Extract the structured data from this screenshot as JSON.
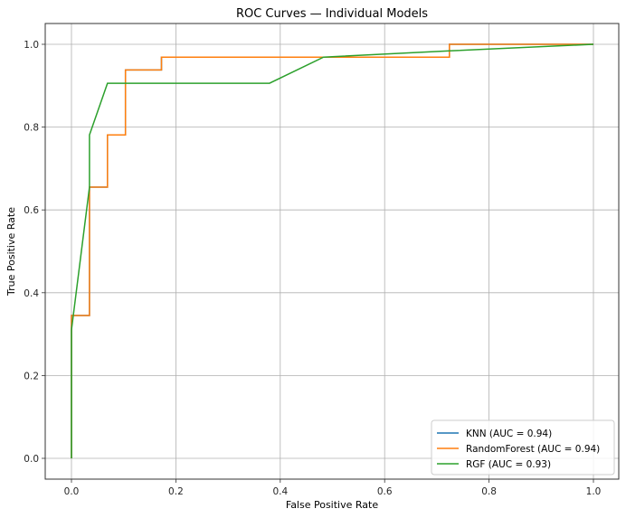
{
  "chart_data": {
    "type": "line",
    "title": "ROC Curves — Individual Models",
    "xlabel": "False Positive Rate",
    "ylabel": "True Positive Rate",
    "xlim": [
      -0.05,
      1.05
    ],
    "ylim": [
      -0.05,
      1.05
    ],
    "xticks": [
      0.0,
      0.2,
      0.4,
      0.6,
      0.8,
      1.0
    ],
    "yticks": [
      0.0,
      0.2,
      0.4,
      0.6,
      0.8,
      1.0
    ],
    "xtick_labels": [
      "0.0",
      "0.2",
      "0.4",
      "0.6",
      "0.8",
      "1.0"
    ],
    "ytick_labels": [
      "0.0",
      "0.2",
      "0.4",
      "0.6",
      "0.8",
      "1.0"
    ],
    "grid": true,
    "legend_position": "lower right",
    "series": [
      {
        "name": "KNN (AUC = 0.94)",
        "color": "#1f77b4",
        "x": [
          0.0,
          0.0,
          0.0345,
          0.0345,
          0.069,
          0.069,
          0.1034,
          0.1034,
          0.1724,
          0.1724,
          0.7241,
          0.7241,
          1.0
        ],
        "y": [
          0.0,
          0.345,
          0.345,
          0.655,
          0.655,
          0.781,
          0.781,
          0.938,
          0.938,
          0.969,
          0.969,
          1.0,
          1.0
        ]
      },
      {
        "name": "RandomForest (AUC = 0.94)",
        "color": "#ff7f0e",
        "x": [
          0.0,
          0.0,
          0.0345,
          0.0345,
          0.069,
          0.069,
          0.1034,
          0.1034,
          0.1724,
          0.1724,
          0.7241,
          0.7241,
          1.0
        ],
        "y": [
          0.0,
          0.345,
          0.345,
          0.655,
          0.655,
          0.781,
          0.781,
          0.938,
          0.938,
          0.969,
          0.969,
          1.0,
          1.0
        ]
      },
      {
        "name": "RGF (AUC = 0.93)",
        "color": "#2ca02c",
        "x": [
          0.0,
          0.0,
          0.0345,
          0.0345,
          0.069,
          0.3793,
          0.4828,
          0.7241,
          1.0
        ],
        "y": [
          0.0,
          0.31,
          0.655,
          0.781,
          0.906,
          0.906,
          0.969,
          0.984,
          1.0
        ]
      }
    ]
  }
}
